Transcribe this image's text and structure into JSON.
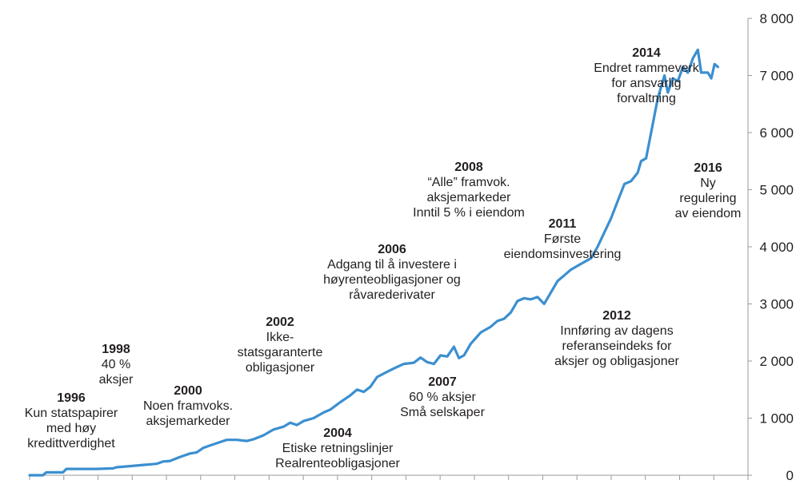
{
  "chart_data": {
    "type": "line",
    "title": "",
    "xlabel": "",
    "ylabel": "",
    "ylim": [
      0,
      8000
    ],
    "xlim": [
      1996.0,
      2017.5
    ],
    "grid": false,
    "legend": "none",
    "y_ticks": [
      0,
      1000,
      2000,
      3000,
      4000,
      5000,
      6000,
      7000,
      8000
    ],
    "y_tick_labels": [
      "0",
      "1 000",
      "2 000",
      "3 000",
      "4 000",
      "5 000",
      "6 000",
      "7 000",
      "8 000"
    ],
    "series": [
      {
        "color": "#3b8fd0",
        "points": [
          [
            1996.0,
            0
          ],
          [
            1996.4,
            0
          ],
          [
            1996.5,
            50
          ],
          [
            1997.0,
            50
          ],
          [
            1997.1,
            110
          ],
          [
            1998.0,
            110
          ],
          [
            1998.5,
            120
          ],
          [
            1998.6,
            140
          ],
          [
            1999.0,
            160
          ],
          [
            1999.4,
            180
          ],
          [
            1999.8,
            200
          ],
          [
            2000.0,
            240
          ],
          [
            2000.2,
            250
          ],
          [
            2000.5,
            320
          ],
          [
            2000.8,
            380
          ],
          [
            2001.0,
            400
          ],
          [
            2001.2,
            480
          ],
          [
            2001.4,
            520
          ],
          [
            2001.7,
            580
          ],
          [
            2001.9,
            620
          ],
          [
            2002.2,
            620
          ],
          [
            2002.5,
            600
          ],
          [
            2002.7,
            630
          ],
          [
            2003.0,
            700
          ],
          [
            2003.3,
            800
          ],
          [
            2003.6,
            850
          ],
          [
            2003.8,
            920
          ],
          [
            2004.0,
            880
          ],
          [
            2004.2,
            950
          ],
          [
            2004.5,
            1000
          ],
          [
            2004.8,
            1100
          ],
          [
            2005.0,
            1150
          ],
          [
            2005.3,
            1280
          ],
          [
            2005.6,
            1400
          ],
          [
            2005.8,
            1500
          ],
          [
            2006.0,
            1460
          ],
          [
            2006.2,
            1550
          ],
          [
            2006.4,
            1720
          ],
          [
            2006.6,
            1780
          ],
          [
            2006.9,
            1870
          ],
          [
            2007.2,
            1950
          ],
          [
            2007.5,
            1970
          ],
          [
            2007.7,
            2060
          ],
          [
            2007.9,
            1980
          ],
          [
            2008.1,
            1950
          ],
          [
            2008.3,
            2100
          ],
          [
            2008.5,
            2080
          ],
          [
            2008.7,
            2250
          ],
          [
            2008.85,
            2050
          ],
          [
            2009.0,
            2100
          ],
          [
            2009.2,
            2300
          ],
          [
            2009.5,
            2500
          ],
          [
            2009.8,
            2600
          ],
          [
            2010.0,
            2700
          ],
          [
            2010.2,
            2740
          ],
          [
            2010.4,
            2850
          ],
          [
            2010.6,
            3050
          ],
          [
            2010.8,
            3100
          ],
          [
            2011.0,
            3080
          ],
          [
            2011.2,
            3120
          ],
          [
            2011.4,
            3000
          ],
          [
            2011.6,
            3200
          ],
          [
            2011.8,
            3400
          ],
          [
            2012.0,
            3500
          ],
          [
            2012.2,
            3600
          ],
          [
            2012.5,
            3700
          ],
          [
            2012.8,
            3800
          ],
          [
            2013.0,
            4000
          ],
          [
            2013.2,
            4250
          ],
          [
            2013.4,
            4500
          ],
          [
            2013.6,
            4800
          ],
          [
            2013.8,
            5100
          ],
          [
            2014.0,
            5150
          ],
          [
            2014.2,
            5300
          ],
          [
            2014.3,
            5500
          ],
          [
            2014.45,
            5550
          ],
          [
            2014.6,
            6000
          ],
          [
            2014.8,
            6600
          ],
          [
            2015.0,
            7000
          ],
          [
            2015.1,
            6700
          ],
          [
            2015.25,
            6950
          ],
          [
            2015.4,
            6900
          ],
          [
            2015.55,
            7150
          ],
          [
            2015.7,
            7050
          ],
          [
            2015.85,
            7300
          ],
          [
            2016.0,
            7450
          ],
          [
            2016.1,
            7050
          ],
          [
            2016.3,
            7050
          ],
          [
            2016.4,
            6950
          ],
          [
            2016.5,
            7200
          ],
          [
            2016.6,
            7150
          ]
        ]
      }
    ],
    "annotations": [
      {
        "year": "1996",
        "lines": [
          "Kun statspapirer",
          "med høy",
          "kredittverdighet"
        ]
      },
      {
        "year": "1998",
        "lines": [
          "40 %",
          "aksjer"
        ]
      },
      {
        "year": "2000",
        "lines": [
          "Noen framvoks.",
          "aksjemarkeder"
        ]
      },
      {
        "year": "2002",
        "lines": [
          "Ikke-",
          "statsgaranterte",
          "obligasjoner"
        ]
      },
      {
        "year": "2004",
        "lines": [
          "Etiske retningslinjer",
          "Realrenteobligasjoner"
        ]
      },
      {
        "year": "2006",
        "lines": [
          "Adgang til å investere i",
          "høyrenteobligasjoner og",
          "råvarederivater"
        ]
      },
      {
        "year": "2007",
        "lines": [
          "60 % aksjer",
          "Små selskaper"
        ]
      },
      {
        "year": "2008",
        "lines": [
          "“Alle” framvok.",
          "aksjemarkeder",
          "Inntil 5 % i eiendom"
        ]
      },
      {
        "year": "2011",
        "lines": [
          "Første",
          "eiendomsinvestering"
        ]
      },
      {
        "year": "2012",
        "lines": [
          "Innføring av dagens",
          "referanseindeks for",
          "aksjer og obligasjoner"
        ]
      },
      {
        "year": "2014",
        "lines": [
          "Endret rammeverk",
          "for ansvarlig",
          "forvaltning"
        ]
      },
      {
        "year": "2016",
        "lines": [
          "Ny",
          "regulering",
          "av eiendom"
        ]
      }
    ]
  }
}
